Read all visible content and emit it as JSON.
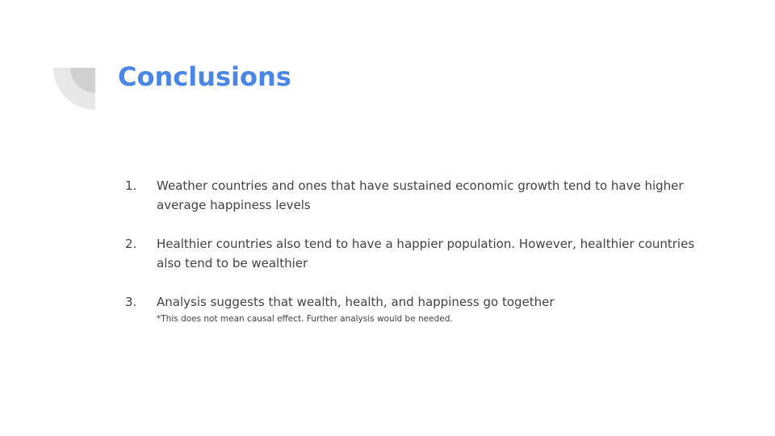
{
  "slide": {
    "title": "Conclusions",
    "points": [
      {
        "number": "1.",
        "text": "Weather countries and ones that have sustained economic growth tend to have higher average happiness levels"
      },
      {
        "number": "2.",
        "text": "Healthier countries also tend to have a happier population. However, healthier countries also tend to be wealthier"
      },
      {
        "number": "3.",
        "text": "Analysis suggests that wealth, health, and happiness go together",
        "note": "*This does not mean causal effect. Further analysis would be needed."
      }
    ]
  },
  "colors": {
    "title": "#4a86e8",
    "body_text": "#434343",
    "deco_outer": "#e8e8e8",
    "deco_inner": "#d0d0d0"
  }
}
